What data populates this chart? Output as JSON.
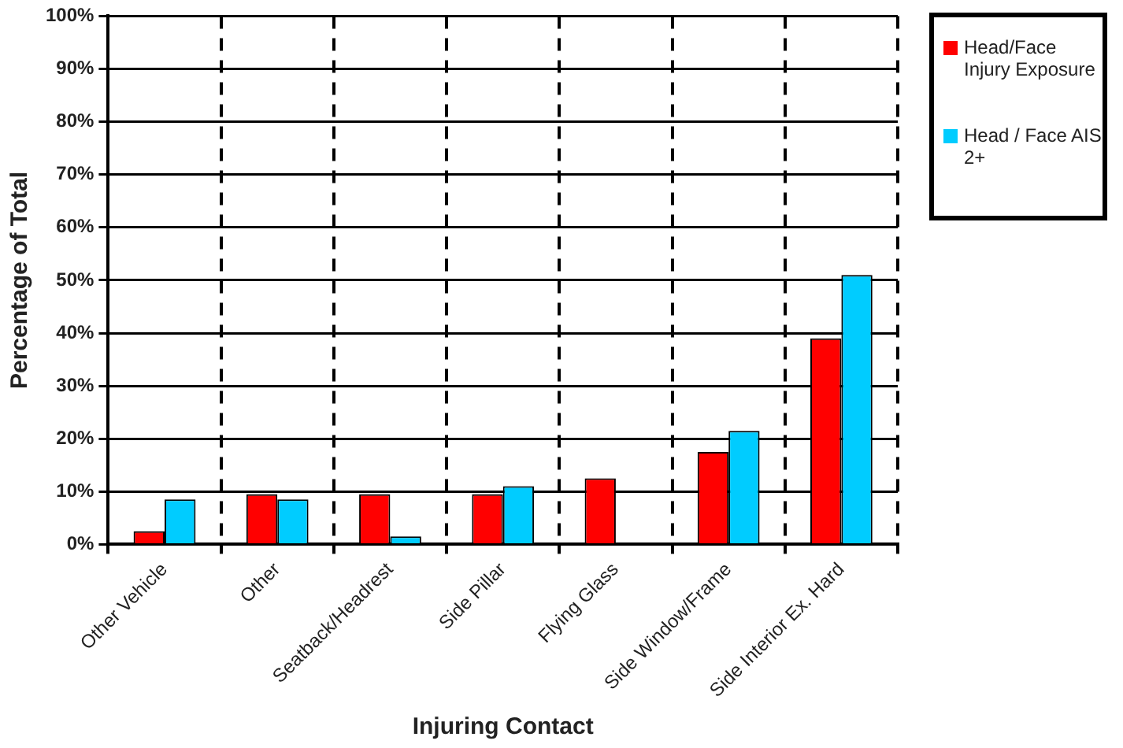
{
  "chart_data": {
    "type": "bar",
    "xlabel": "Injuring Contact",
    "ylabel": "Percentage of Total",
    "categories": [
      "Other Vehicle",
      "Other",
      "Seatback/Headrest",
      "Side Pillar",
      "Flying Glass",
      "Side Window/Frame",
      "Side Interior Ex. Hard"
    ],
    "series": [
      {
        "name": "Head/Face Injury Exposure",
        "color": "#ff0000",
        "values": [
          2.5,
          9.5,
          9.5,
          9.5,
          12.5,
          17.5,
          39
        ]
      },
      {
        "name": "Head / Face AIS 2+",
        "color": "#00ccff",
        "values": [
          8.5,
          8.5,
          1.5,
          11,
          null,
          21.5,
          51
        ]
      }
    ],
    "ylim": [
      0,
      100
    ],
    "yticks": [
      {
        "value": 0,
        "label": "0%"
      },
      {
        "value": 10,
        "label": "10%"
      },
      {
        "value": 20,
        "label": "20%"
      },
      {
        "value": 30,
        "label": "30%"
      },
      {
        "value": 40,
        "label": "40%"
      },
      {
        "value": 50,
        "label": "50%"
      },
      {
        "value": 60,
        "label": "60%"
      },
      {
        "value": 70,
        "label": "70%"
      },
      {
        "value": 80,
        "label": "80%"
      },
      {
        "value": 90,
        "label": "90%"
      },
      {
        "value": 100,
        "label": "100%"
      }
    ],
    "grid": true,
    "legend": "right"
  }
}
